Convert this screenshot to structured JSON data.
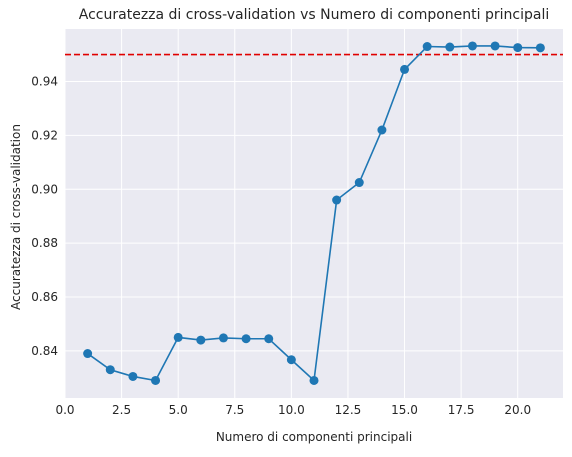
{
  "chart_data": {
    "type": "line",
    "title": "Accuratezza di cross-validation vs Numero di componenti principali",
    "xlabel": "Numero di componenti principali",
    "ylabel": "Accuratezza di cross-validation",
    "xlim": [
      0.0,
      22.0
    ],
    "ylim": [
      0.8225,
      0.9595
    ],
    "x_ticks": [
      0.0,
      2.5,
      5.0,
      7.5,
      10.0,
      12.5,
      15.0,
      17.5,
      20.0
    ],
    "x_tick_labels": [
      "0.0",
      "2.5",
      "5.0",
      "7.5",
      "10.0",
      "12.5",
      "15.0",
      "17.5",
      "20.0"
    ],
    "y_ticks": [
      0.84,
      0.86,
      0.88,
      0.9,
      0.92,
      0.94
    ],
    "y_tick_labels": [
      "0.84",
      "0.86",
      "0.88",
      "0.90",
      "0.92",
      "0.94"
    ],
    "grid": true,
    "series": [
      {
        "color": "#1f77b4",
        "marker": "circle",
        "x": [
          1,
          2,
          3,
          4,
          5,
          6,
          7,
          8,
          9,
          10,
          11,
          12,
          13,
          14,
          15,
          16,
          17,
          18,
          19,
          20,
          21
        ],
        "y": [
          0.839,
          0.833,
          0.8305,
          0.829,
          0.845,
          0.844,
          0.8448,
          0.8445,
          0.8445,
          0.8367,
          0.829,
          0.896,
          0.9025,
          0.922,
          0.9445,
          0.953,
          0.9528,
          0.9532,
          0.9532,
          0.9526,
          0.9525
        ]
      }
    ],
    "reference_line": {
      "orientation": "horizontal",
      "y": 0.95,
      "color": "#e00000",
      "style": "dashed"
    },
    "colors": {
      "background": "#eaeaf2",
      "grid": "#ffffff",
      "series": "#1f77b4",
      "reference": "#e00000"
    }
  }
}
